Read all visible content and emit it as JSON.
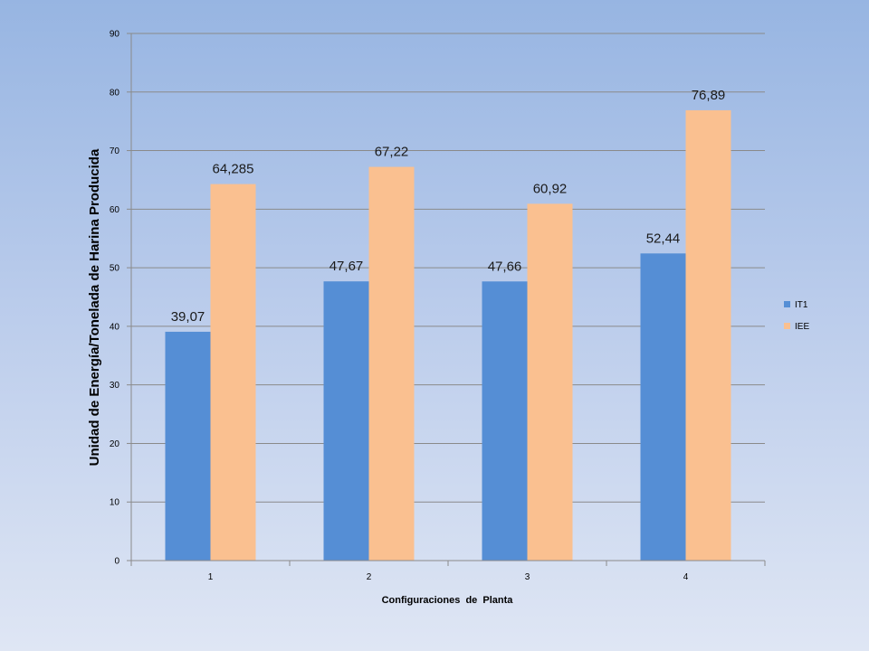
{
  "chart_data": {
    "type": "bar",
    "categories": [
      "1",
      "2",
      "3",
      "4"
    ],
    "series": [
      {
        "name": "IT1",
        "values": [
          39.07,
          47.67,
          47.66,
          52.44
        ],
        "labels": [
          "39,07",
          "47,67",
          "47,66",
          "52,44"
        ],
        "color": "#558ed5"
      },
      {
        "name": "IEE",
        "values": [
          64.285,
          67.22,
          60.92,
          76.89
        ],
        "labels": [
          "64,285",
          "67,22",
          "60,92",
          "76,89"
        ],
        "color": "#fac090"
      }
    ],
    "xlabel": "Configuraciones  de  Planta",
    "ylabel": "Unidad de Energía/Tonelada de Harina Producida",
    "ylim": [
      0,
      90
    ],
    "yticks": [
      0,
      10,
      20,
      30,
      40,
      50,
      60,
      70,
      80,
      90
    ],
    "grid": true,
    "legend_position": "right"
  }
}
